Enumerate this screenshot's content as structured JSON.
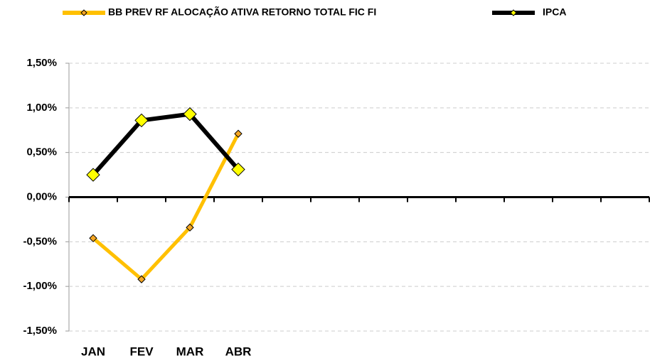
{
  "chart_data": {
    "type": "line",
    "categories": [
      "JAN",
      "FEV",
      "MAR",
      "ABR",
      null,
      null,
      null,
      null,
      null,
      null,
      null,
      null
    ],
    "series": [
      {
        "name": "BB PREV RF ALOCAÇÃO ATIVA RETORNO TOTAL FIC FI",
        "color": "#ffc000",
        "marker_color": "#f5a623",
        "values": [
          -0.46,
          -0.92,
          -0.34,
          0.71,
          null,
          null,
          null,
          null,
          null,
          null,
          null,
          null
        ]
      },
      {
        "name": "IPCA",
        "color": "#000000",
        "marker_color": "#ffff00",
        "values": [
          0.25,
          0.86,
          0.93,
          0.31,
          null,
          null,
          null,
          null,
          null,
          null,
          null,
          null
        ]
      }
    ],
    "ylim": [
      -1.5,
      1.5
    ],
    "yticks": [
      {
        "value": -1.5,
        "label": "-1,50%"
      },
      {
        "value": -1.0,
        "label": "-1,00%"
      },
      {
        "value": -0.5,
        "label": "-0,50%"
      },
      {
        "value": 0,
        "label": "0,00%"
      },
      {
        "value": 0.5,
        "label": "0,50%"
      },
      {
        "value": 1.0,
        "label": "1,00%"
      },
      {
        "value": 1.5,
        "label": "1,50%"
      }
    ],
    "grid": true,
    "legend": "top"
  }
}
